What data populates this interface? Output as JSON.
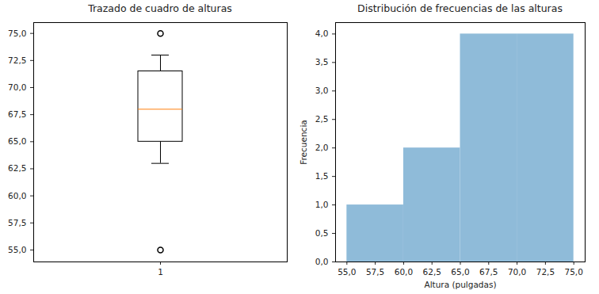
{
  "chart_data": [
    {
      "type": "box",
      "title": "Trazado de cuadro de alturas",
      "categories": [
        "1"
      ],
      "q1": 65,
      "median": 68,
      "q3": 71.5,
      "whisker_low": 63,
      "whisker_high": 73,
      "outliers": [
        55,
        75
      ],
      "color": "#ff7f0e",
      "ylim": [
        53.9,
        76.0
      ],
      "yticks": [
        {
          "value": 55,
          "label": "55,0"
        },
        {
          "value": 57.5,
          "label": "57,5"
        },
        {
          "value": 60,
          "label": "60,0"
        },
        {
          "value": 62.5,
          "label": "62,5"
        },
        {
          "value": 65,
          "label": "65,0"
        },
        {
          "value": 67.5,
          "label": "67,5"
        },
        {
          "value": 70,
          "label": "70,0"
        },
        {
          "value": 72.5,
          "label": "72,5"
        },
        {
          "value": 75,
          "label": "75,0"
        }
      ]
    },
    {
      "type": "histogram",
      "title": "Distribución de frecuencias de las alturas",
      "bins": [
        55,
        60,
        65,
        70,
        75
      ],
      "values": [
        1,
        2,
        4,
        4
      ],
      "color": "#8fbbd9",
      "xlabel": "Altura (pulgadas)",
      "ylabel": "Frecuencia",
      "xlim": [
        54,
        76
      ],
      "ylim": [
        0,
        4.2
      ],
      "xticks": [
        {
          "value": 55,
          "label": "55,0"
        },
        {
          "value": 57.5,
          "label": "57,5"
        },
        {
          "value": 60,
          "label": "60,0"
        },
        {
          "value": 62.5,
          "label": "62,5"
        },
        {
          "value": 65,
          "label": "65,0"
        },
        {
          "value": 67.5,
          "label": "67,5"
        },
        {
          "value": 70,
          "label": "70,0"
        },
        {
          "value": 72.5,
          "label": "72,5"
        },
        {
          "value": 75,
          "label": "75,0"
        }
      ],
      "yticks": [
        {
          "value": 0,
          "label": "0,0"
        },
        {
          "value": 0.5,
          "label": "0,5"
        },
        {
          "value": 1,
          "label": "1,0"
        },
        {
          "value": 1.5,
          "label": "1,5"
        },
        {
          "value": 2,
          "label": "2,0"
        },
        {
          "value": 2.5,
          "label": "2,5"
        },
        {
          "value": 3,
          "label": "3,0"
        },
        {
          "value": 3.5,
          "label": "3,5"
        },
        {
          "value": 4,
          "label": "4,0"
        }
      ]
    }
  ]
}
